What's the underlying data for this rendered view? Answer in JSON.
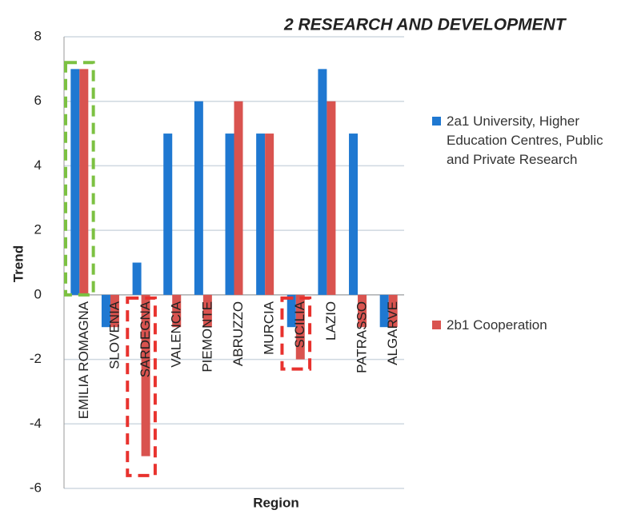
{
  "chart_data": {
    "type": "bar",
    "title": "2 RESEARCH AND DEVELOPMENT",
    "x_label": "Region",
    "y_label": "Trend",
    "categories": [
      "EMILIA ROMAGNA",
      "SLOVENIA",
      "SARDEGNA",
      "VALENCIA",
      "PIEMONTE",
      "ABRUZZO",
      "MURCIA",
      "SICILIA",
      "LAZIO",
      "PATRASSO",
      "ALGARVE"
    ],
    "series": [
      {
        "name": "2a1 University, Higher Education Centres, Public and Private Research",
        "color": "#1f78d1",
        "values": [
          7,
          -1,
          1,
          5,
          6,
          5,
          5,
          -1,
          7,
          5,
          -1
        ]
      },
      {
        "name": "2b1 Cooperation",
        "color": "#d9534f",
        "values": [
          7,
          -1,
          -5,
          -1,
          -1,
          6,
          5,
          -2,
          6,
          -1,
          -1
        ]
      }
    ],
    "ylim": [
      -6,
      8
    ],
    "yticks": [
      -6,
      -4,
      -2,
      0,
      2,
      4,
      6,
      8
    ],
    "grid": true,
    "legend": "right"
  }
}
